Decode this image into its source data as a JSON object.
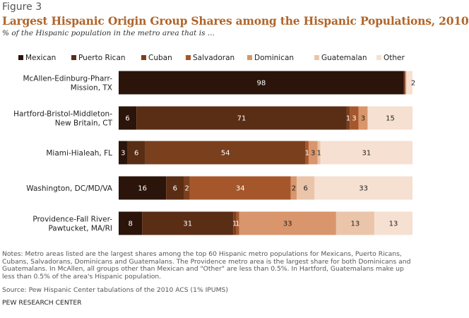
{
  "figure_label": "Figure 3",
  "chart_data": {
    "type": "bar",
    "orientation": "horizontal",
    "stacked": true,
    "title": "Largest Hispanic Origin Group Shares among the Hispanic Populations, 2010",
    "subtitle": "% of the Hispanic population in the metro area that is ...",
    "xlim": [
      0,
      100
    ],
    "grid": false,
    "legend_position": "top",
    "categories": [
      "McAllen-Edinburg-Pharr-\nMission, TX",
      "Hartford-Bristol-Middleton-\nNew Britain, CT",
      "Miami-Hialeah, FL",
      "Washington, DC/MD/VA",
      "Providence-Fall River-\nPawtucket, MA/RI"
    ],
    "series": [
      {
        "name": "Mexican",
        "color": "#2b1409",
        "values": [
          98,
          6,
          3,
          16,
          8
        ],
        "labels": [
          "98",
          "6",
          "3",
          "16",
          "8"
        ]
      },
      {
        "name": "Puerto Rican",
        "color": "#5a2d15",
        "values": [
          0.2,
          71,
          6,
          6,
          31
        ],
        "labels": [
          "",
          "71",
          "6",
          "6",
          "31"
        ]
      },
      {
        "name": "Cuban",
        "color": "#7a3f1d",
        "values": [
          0.2,
          1,
          54,
          2,
          1
        ],
        "labels": [
          "",
          "1",
          "54",
          "2",
          "1"
        ]
      },
      {
        "name": "Salvadoran",
        "color": "#a5572b",
        "values": [
          0.2,
          3,
          1,
          34,
          1
        ],
        "labels": [
          "",
          "3",
          "1",
          "34",
          "1"
        ]
      },
      {
        "name": "Dominican",
        "color": "#d9956b",
        "values": [
          0.2,
          3,
          3,
          2,
          33
        ],
        "labels": [
          "",
          "3",
          "3",
          "2",
          "33"
        ]
      },
      {
        "name": "Guatemalan",
        "color": "#ebc5a9",
        "values": [
          0.2,
          0.2,
          1,
          6,
          13
        ],
        "labels": [
          "",
          "",
          "1",
          "6",
          "13"
        ]
      },
      {
        "name": "Other",
        "color": "#f6e0d1",
        "values": [
          2,
          15,
          31,
          33,
          13
        ],
        "labels": [
          "2",
          "15",
          "31",
          "33",
          "13"
        ]
      }
    ]
  },
  "notes": "Notes: Metro areas listed are the largest shares among the top 60 Hispanic metro populations for Mexicans, Puerto Ricans, Cubans, Salvadorans, Dominicans and Guatemalans. The Providence metro area is the largest share for both Dominicans and Guatemalans. In McAllen, all groups other than Mexican and \"Other\" are less than 0.5%. In Hartford, Guatemalans make up less than 0.5% of the area's Hispanic population.",
  "source": "Source: Pew Hispanic Center tabulations of the 2010 ACS (1% IPUMS)",
  "footer": "PEW RESEARCH CENTER"
}
